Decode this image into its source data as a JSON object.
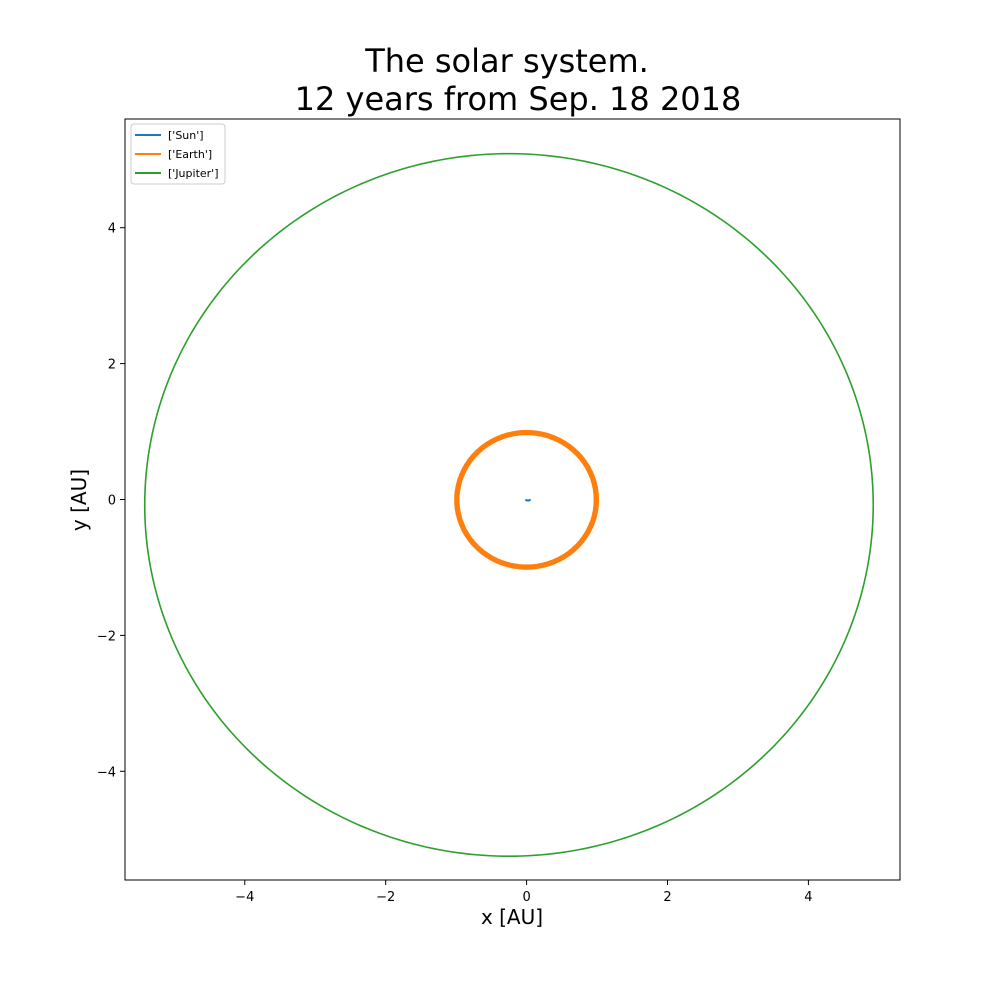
{
  "chart_data": {
    "type": "line",
    "title": [
      "The solar system.",
      "12 years from Sep. 18 2018"
    ],
    "xlabel": "x [AU]",
    "ylabel": "y [AU]",
    "xlim": [
      -5.7,
      5.3
    ],
    "ylim": [
      -5.6,
      5.6
    ],
    "xticks": [
      -4,
      -2,
      0,
      2,
      4
    ],
    "yticks": [
      -4,
      -2,
      0,
      2,
      4
    ],
    "xtick_labels": [
      "−4",
      "−2",
      "0",
      "2",
      "4"
    ],
    "ytick_labels": [
      "−4",
      "−2",
      "0",
      "2",
      "4"
    ],
    "grid": false,
    "legend_position": "top-left",
    "series": [
      {
        "name": "['Sun']",
        "color": "#1f77b4",
        "orbit": {
          "cx": 0.02,
          "cy": 0.0,
          "rx": 0.03,
          "ry": 0.015,
          "start_deg": 180,
          "end_deg": 360
        },
        "stroke": 2
      },
      {
        "name": "['Earth']",
        "color": "#ff7f0e",
        "orbit": {
          "cx": 0.0,
          "cy": -0.005,
          "rx": 0.99,
          "ry": 0.99,
          "spread": 0.025,
          "loops": 12
        },
        "stroke": 2
      },
      {
        "name": "['Jupiter']",
        "color": "#2ca02c",
        "orbit": {
          "cx": -0.25,
          "cy": -0.08,
          "rx": 5.17,
          "ry": 5.17,
          "start_deg": 0,
          "end_deg": 360
        },
        "stroke": 1.6
      }
    ]
  }
}
